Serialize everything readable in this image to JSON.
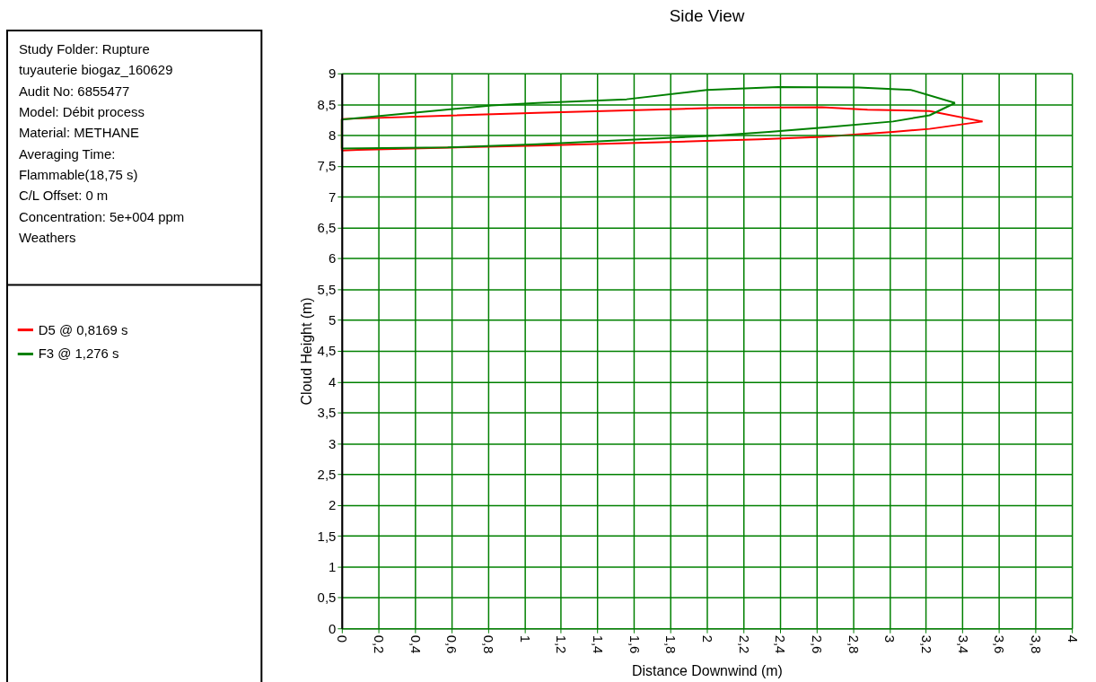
{
  "chart_data": {
    "type": "line",
    "title": "Side View",
    "xlabel": "Distance Downwind (m)",
    "ylabel": "Cloud Height (m)",
    "annotations": [
      "Study Folder: Rupture",
      "tuyauterie biogaz_160629",
      "Audit No: 6855477",
      "Model: Débit process",
      "Material: METHANE",
      "Averaging Time:",
      "Flammable(18,75 s)",
      "C/L Offset: 0 m",
      "Concentration: 5e+004 ppm",
      "Weathers"
    ],
    "series": [
      {
        "name": "D5 @ 0,8169 s",
        "color": "#ff0000",
        "x": [
          0,
          0,
          1.07,
          2.04,
          2.63,
          2.88,
          3.22,
          3.51
        ],
        "values": [
          7.75,
          8.26,
          8.36,
          8.44,
          8.45,
          8.41,
          8.39,
          8.22
        ]
      },
      {
        "color": "#ff0000",
        "x": [
          0,
          0.09,
          1.07,
          1.95,
          2.29,
          2.63,
          3.02,
          3.22,
          3.51
        ],
        "values": [
          7.75,
          7.76,
          7.83,
          7.9,
          7.93,
          7.97,
          8.05,
          8.1,
          8.22
        ]
      },
      {
        "name": "F3 @ 1,276 s",
        "color": "#008000",
        "x": [
          0,
          0,
          0.82,
          1.07,
          1.56,
          2.0,
          2.39,
          2.83,
          3.12,
          3.36
        ],
        "values": [
          7.78,
          8.25,
          8.48,
          8.52,
          8.58,
          8.73,
          8.78,
          8.77,
          8.73,
          8.52
        ]
      },
      {
        "color": "#008000",
        "x": [
          0,
          0.58,
          1.07,
          1.56,
          2.04,
          2.34,
          2.63,
          3.02,
          3.22,
          3.36
        ],
        "values": [
          7.78,
          7.8,
          7.85,
          7.92,
          7.99,
          8.05,
          8.12,
          8.22,
          8.32,
          8.52
        ]
      }
    ],
    "xlim": [
      0,
      4
    ],
    "xticks": [
      0,
      {
        "value": 0.2,
        "label": "0,2"
      },
      {
        "value": 0.4,
        "label": "0,4"
      },
      {
        "value": 0.6,
        "label": "0,6"
      },
      {
        "value": 0.8,
        "label": "0,8"
      },
      1,
      {
        "value": 1.2,
        "label": "1,2"
      },
      {
        "value": 1.4,
        "label": "1,4"
      },
      {
        "value": 1.6,
        "label": "1,6"
      },
      {
        "value": 1.8,
        "label": "1,8"
      },
      2,
      {
        "value": 2.2,
        "label": "2,2"
      },
      {
        "value": 2.4,
        "label": "2,4"
      },
      {
        "value": 2.6,
        "label": "2,6"
      },
      {
        "value": 2.8,
        "label": "2,8"
      },
      3,
      {
        "value": 3.2,
        "label": "3,2"
      },
      {
        "value": 3.4,
        "label": "3,4"
      },
      {
        "value": 3.6,
        "label": "3,6"
      },
      {
        "value": 3.8,
        "label": "3,8"
      },
      4
    ],
    "ylim": [
      0,
      9
    ],
    "yticks": [
      0,
      {
        "value": 0.5,
        "label": "0,5"
      },
      1,
      {
        "value": 1.5,
        "label": "1,5"
      },
      2,
      {
        "value": 2.5,
        "label": "2,5"
      },
      3,
      {
        "value": 3.5,
        "label": "3,5"
      },
      4,
      {
        "value": 4.5,
        "label": "4,5"
      },
      5,
      {
        "value": 5.5,
        "label": "5,5"
      },
      6,
      {
        "value": 6.5,
        "label": "6,5"
      },
      7,
      {
        "value": 7.5,
        "label": "7,5"
      },
      8,
      {
        "value": 8.5,
        "label": "8,5"
      },
      9
    ],
    "grid": true,
    "legend": "left",
    "marker": "none",
    "line_style": "solid"
  }
}
